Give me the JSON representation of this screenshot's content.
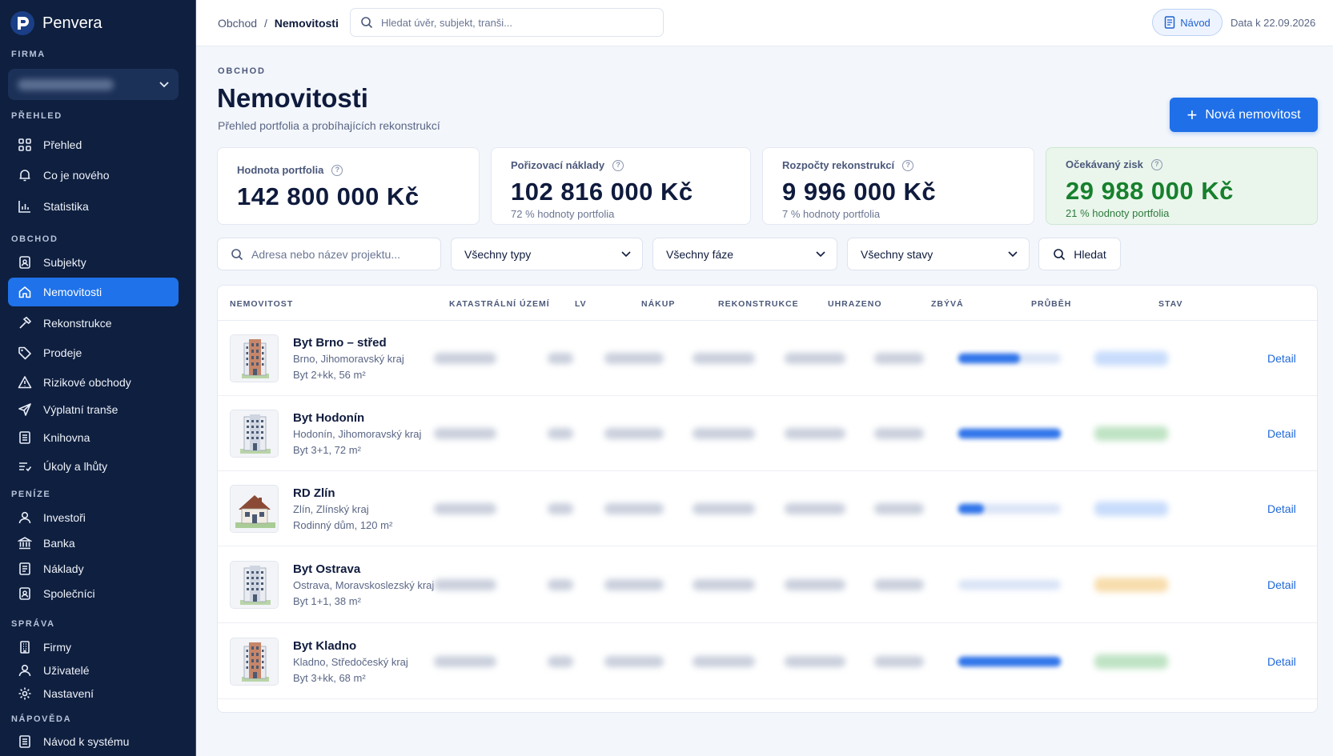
{
  "app": {
    "name": "Penvera"
  },
  "sidebar": {
    "firm_label": "FIRMA",
    "sections": [
      {
        "label": "PŘEHLED",
        "items": [
          {
            "label": "Přehled",
            "icon": "grid-icon"
          },
          {
            "label": "Co je nového",
            "icon": "bell-icon"
          },
          {
            "label": "Statistika",
            "icon": "bar-chart-icon"
          }
        ]
      },
      {
        "label": "OBCHOD",
        "items": [
          {
            "label": "Subjekty",
            "icon": "contact-icon"
          },
          {
            "label": "Nemovitosti",
            "icon": "home-icon",
            "active": true
          },
          {
            "label": "Rekonstrukce",
            "icon": "hammer-icon"
          },
          {
            "label": "Prodeje",
            "icon": "tag-icon"
          },
          {
            "label": "Rizikové obchody",
            "icon": "warning-icon"
          },
          {
            "label": "Výplatní tranše",
            "icon": "send-icon"
          },
          {
            "label": "Knihovna",
            "icon": "document-icon"
          },
          {
            "label": "Úkoly a lhůty",
            "icon": "tasks-icon"
          }
        ]
      },
      {
        "label": "PENÍZE",
        "items": [
          {
            "label": "Investoři",
            "icon": "user-icon"
          },
          {
            "label": "Banka",
            "icon": "bank-icon"
          },
          {
            "label": "Náklady",
            "icon": "document-icon"
          },
          {
            "label": "Společníci",
            "icon": "contact-icon"
          }
        ]
      },
      {
        "label": "SPRÁVA",
        "items": [
          {
            "label": "Firmy",
            "icon": "building-icon"
          },
          {
            "label": "Uživatelé",
            "icon": "user-icon"
          },
          {
            "label": "Nastavení",
            "icon": "gear-icon"
          }
        ]
      },
      {
        "label": "NÁPOVĚDA",
        "items": [
          {
            "label": "Návod k systému",
            "icon": "document-icon"
          }
        ]
      }
    ]
  },
  "topbar": {
    "breadcrumb": {
      "parent": "Obchod",
      "separator": "/",
      "current": "Nemovitosti"
    },
    "search_placeholder": "Hledat úvěr, subjekt, tranši...",
    "guide_label": "Návod",
    "data_date": "Data k 22.09.2026"
  },
  "header": {
    "overline": "OBCHOD",
    "title": "Nemovitosti",
    "subtitle": "Přehled portfolia a probíhajících rekonstrukcí",
    "new_button": "Nová nemovitost"
  },
  "stats": [
    {
      "label": "Hodnota portfolia",
      "value": "142 800 000 Kč",
      "note": ""
    },
    {
      "label": "Pořizovací náklady",
      "value": "102 816 000 Kč",
      "note": "72 % hodnoty portfolia"
    },
    {
      "label": "Rozpočty rekonstrukcí",
      "value": "9 996 000 Kč",
      "note": "7 % hodnoty portfolia"
    },
    {
      "label": "Očekávaný zisk",
      "value": "29 988 000 Kč",
      "note": "21 % hodnoty portfolia"
    }
  ],
  "filters": {
    "search_placeholder": "Adresa nebo název projektu...",
    "type": "Všechny typy",
    "phase": "Všechny fáze",
    "status": "Všechny stavy",
    "search_button": "Hledat"
  },
  "table": {
    "columns": [
      "NEMOVITOST",
      "KATASTRÁLNÍ ÚZEMÍ",
      "LV",
      "NÁKUP",
      "REKONSTRUKCE",
      "UHRAZENO",
      "ZBÝVÁ",
      "PRŮBĚH",
      "STAV"
    ],
    "detail_label": "Detail",
    "rows": [
      {
        "name": "Byt Brno – střed",
        "location": "Brno, Jihomoravský kraj",
        "description": "Byt 2+kk, 56 m²",
        "image": "apartment-building-icon",
        "progress": 0.6,
        "status_color": "#c8dcfb"
      },
      {
        "name": "Byt Hodonín",
        "location": "Hodonín, Jihomoravský kraj",
        "description": "Byt 3+1, 72 m²",
        "image": "apartment-building-icon",
        "progress": 1.0,
        "status_color": "#bfe3c4"
      },
      {
        "name": "RD Zlín",
        "location": "Zlín, Zlínský kraj",
        "description": "Rodinný dům, 120 m²",
        "image": "family-house-icon",
        "progress": 0.25,
        "status_color": "#c8dcfb"
      },
      {
        "name": "Byt Ostrava",
        "location": "Ostrava, Moravskoslezský kraj",
        "description": "Byt 1+1, 38 m²",
        "image": "apartment-building-icon",
        "progress": 0.0,
        "status_color": "#f8ddad"
      },
      {
        "name": "Byt Kladno",
        "location": "Kladno, Středočeský kraj",
        "description": "Byt 3+kk, 68 m²",
        "image": "apartment-building-icon",
        "progress": 1.0,
        "status_color": "#bfe3c4"
      }
    ]
  },
  "colors": {
    "sidebar_bg": "#0f1f3f",
    "accent": "#1f6fe8",
    "profit_green": "#17802d"
  }
}
